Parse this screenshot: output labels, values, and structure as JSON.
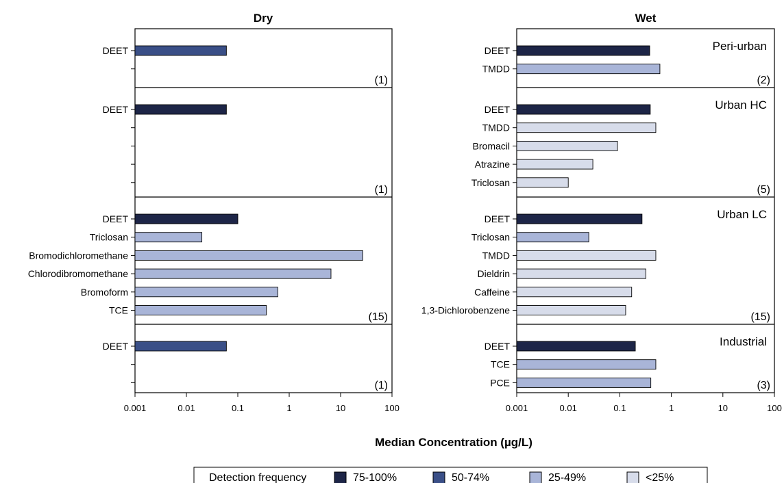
{
  "colors": {
    "75-100%": "#1d2547",
    "50-74%": "#3a4f87",
    "25-49%": "#a9b5d8",
    "<25%": "#d7dcea"
  },
  "legend": {
    "title": "Detection frequency",
    "items": [
      "75-100%",
      "50-74%",
      "25-49%",
      "<25%"
    ]
  },
  "xlabel": "Median Concentration (µg/L)",
  "chart_data": [
    {
      "type": "bar",
      "orientation": "horizontal",
      "title": "Dry",
      "x_scale": "log",
      "xlim": [
        0.001,
        100
      ],
      "x_ticks": [
        "0.001",
        "0.01",
        "0.1",
        "1",
        "10",
        "100"
      ],
      "panels": [
        {
          "label": "",
          "count": "(1)",
          "slots": 2,
          "bars": [
            {
              "name": "DEET",
              "value": 0.06,
              "freq": "50-74%"
            }
          ]
        },
        {
          "label": "",
          "count": "(1)",
          "slots": 5,
          "bars": [
            {
              "name": "DEET",
              "value": 0.06,
              "freq": "75-100%"
            }
          ]
        },
        {
          "label": "",
          "count": "(15)",
          "slots": 6,
          "bars": [
            {
              "name": "DEET",
              "value": 0.1,
              "freq": "75-100%"
            },
            {
              "name": "Triclosan",
              "value": 0.02,
              "freq": "25-49%"
            },
            {
              "name": "Bromodichloromethane",
              "value": 27,
              "freq": "25-49%"
            },
            {
              "name": "Chlorodibromomethane",
              "value": 6.5,
              "freq": "25-49%"
            },
            {
              "name": "Bromoform",
              "value": 0.6,
              "freq": "25-49%"
            },
            {
              "name": "TCE",
              "value": 0.36,
              "freq": "25-49%"
            }
          ]
        },
        {
          "label": "",
          "count": "(1)",
          "slots": 3,
          "bars": [
            {
              "name": "DEET",
              "value": 0.06,
              "freq": "50-74%"
            }
          ]
        }
      ]
    },
    {
      "type": "bar",
      "orientation": "horizontal",
      "title": "Wet",
      "x_scale": "log",
      "xlim": [
        0.001,
        100
      ],
      "x_ticks": [
        "0.001",
        "0.01",
        "0.1",
        "1",
        "10",
        "100"
      ],
      "panels": [
        {
          "label": "Peri-urban",
          "count": "(2)",
          "slots": 2,
          "bars": [
            {
              "name": "DEET",
              "value": 0.38,
              "freq": "75-100%"
            },
            {
              "name": "TMDD",
              "value": 0.6,
              "freq": "25-49%"
            }
          ]
        },
        {
          "label": "Urban HC",
          "count": "(5)",
          "slots": 5,
          "bars": [
            {
              "name": "DEET",
              "value": 0.39,
              "freq": "75-100%"
            },
            {
              "name": "TMDD",
              "value": 0.5,
              "freq": "<25%"
            },
            {
              "name": "Bromacil",
              "value": 0.09,
              "freq": "<25%"
            },
            {
              "name": "Atrazine",
              "value": 0.03,
              "freq": "<25%"
            },
            {
              "name": "Triclosan",
              "value": 0.01,
              "freq": "<25%"
            }
          ]
        },
        {
          "label": "Urban LC",
          "count": "(15)",
          "slots": 6,
          "bars": [
            {
              "name": "DEET",
              "value": 0.27,
              "freq": "75-100%"
            },
            {
              "name": "Triclosan",
              "value": 0.025,
              "freq": "25-49%"
            },
            {
              "name": "TMDD",
              "value": 0.5,
              "freq": "<25%"
            },
            {
              "name": "Dieldrin",
              "value": 0.32,
              "freq": "<25%"
            },
            {
              "name": "Caffeine",
              "value": 0.17,
              "freq": "<25%"
            },
            {
              "name": "1,3-Dichlorobenzene",
              "value": 0.13,
              "freq": "<25%"
            }
          ]
        },
        {
          "label": "Industrial",
          "count": "(3)",
          "slots": 3,
          "bars": [
            {
              "name": "DEET",
              "value": 0.2,
              "freq": "75-100%"
            },
            {
              "name": "TCE",
              "value": 0.5,
              "freq": "25-49%"
            },
            {
              "name": "PCE",
              "value": 0.4,
              "freq": "25-49%"
            }
          ]
        }
      ]
    }
  ]
}
